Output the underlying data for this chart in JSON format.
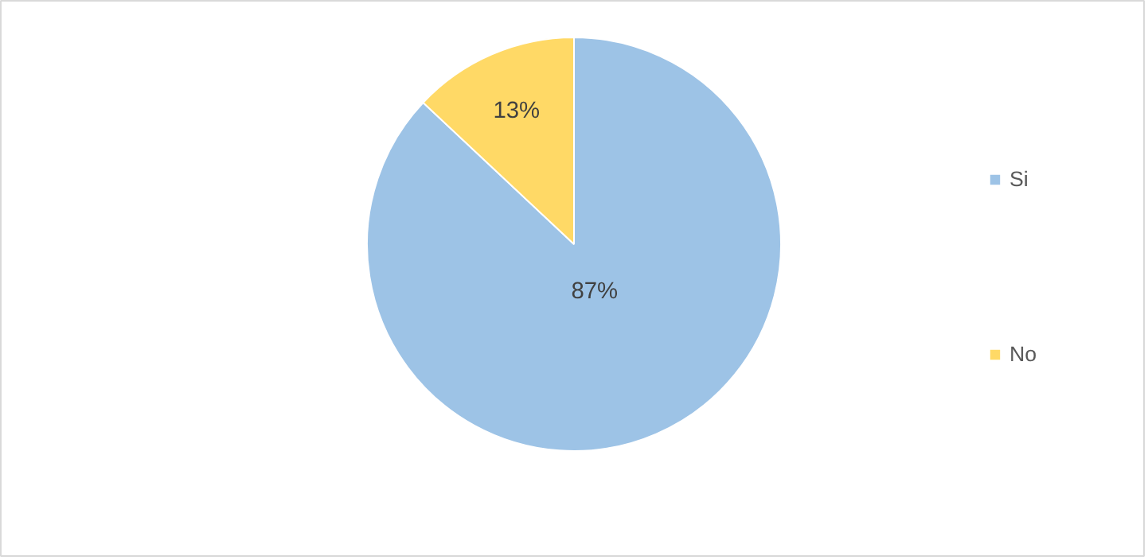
{
  "chart_data": {
    "type": "pie",
    "categories": [
      "Si",
      "No"
    ],
    "values": [
      87,
      13
    ],
    "colors": [
      "#9dc3e6",
      "#ffd966"
    ],
    "value_labels": [
      "87%",
      "13%"
    ],
    "legend": "right"
  }
}
